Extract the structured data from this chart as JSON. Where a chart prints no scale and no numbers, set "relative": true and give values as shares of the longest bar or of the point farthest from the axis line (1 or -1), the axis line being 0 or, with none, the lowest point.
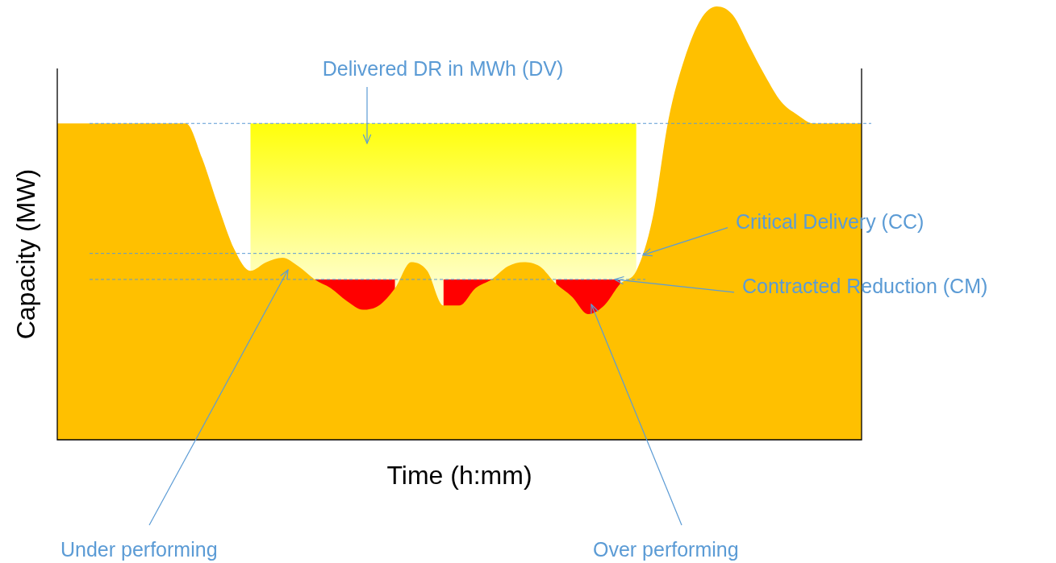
{
  "chart_data": {
    "type": "area",
    "relative": true,
    "xlabel": "Time (h:mm)",
    "ylabel": "Capacity (MW)",
    "categories": [
      null,
      null,
      null,
      null,
      null,
      null,
      null,
      null,
      null,
      null,
      null,
      null,
      null,
      null,
      null,
      null,
      null,
      null,
      null,
      null,
      null,
      null,
      null,
      null,
      null,
      null,
      null,
      null,
      null,
      null,
      null,
      null,
      null,
      null,
      null,
      null,
      null,
      null,
      null,
      null,
      null,
      null,
      null,
      null,
      null,
      null,
      null,
      null,
      null,
      null,
      null
    ],
    "series": [
      {
        "color": "#ffc000",
        "values": [
          0.73,
          0.73,
          0.73,
          0.73,
          0.73,
          0.73,
          0.73,
          0.73,
          0.73,
          0.65,
          0.54,
          0.44,
          0.39,
          0.41,
          0.42,
          0.4,
          0.37,
          0.35,
          0.32,
          0.3,
          0.31,
          0.35,
          0.41,
          0.39,
          0.31,
          0.31,
          0.35,
          0.37,
          0.4,
          0.41,
          0.4,
          0.36,
          0.33,
          0.29,
          0.31,
          0.36,
          0.39,
          0.51,
          0.74,
          0.88,
          0.97,
          1,
          0.98,
          0.91,
          0.84,
          0.78,
          0.75,
          0.73,
          0.73,
          0.73,
          0.73
        ]
      },
      {
        "color": "#ff0000",
        "values": [
          null,
          null,
          null,
          null,
          null,
          null,
          null,
          null,
          null,
          null,
          null,
          null,
          null,
          null,
          null,
          null,
          0.37,
          0.37,
          0.37,
          0.37,
          0.37,
          0.37,
          null,
          null,
          0.37,
          0.37,
          0.37,
          0.37,
          null,
          null,
          null,
          0.37,
          0.37,
          0.37,
          0.37,
          0.37,
          null,
          null,
          null,
          null,
          null,
          null,
          null,
          null,
          null,
          null,
          null,
          null,
          null,
          null,
          null
        ]
      },
      {
        "color": "#ffff00",
        "values": [
          null,
          null,
          null,
          null,
          null,
          null,
          null,
          null,
          null,
          null,
          null,
          null,
          0.73,
          0.73,
          0.73,
          0.73,
          0.73,
          0.73,
          0.73,
          0.73,
          0.73,
          0.73,
          0.73,
          0.73,
          0.73,
          0.73,
          0.73,
          0.73,
          0.73,
          0.73,
          0.73,
          0.73,
          0.73,
          0.73,
          0.73,
          0.73,
          0.73,
          null,
          null,
          null,
          null,
          null,
          null,
          null,
          null,
          null,
          null,
          null,
          null,
          null,
          null
        ]
      }
    ],
    "ref_lines": [
      {
        "axis": "y",
        "value": 0.73,
        "color": "#5b9bd5",
        "line_style": "dashed"
      },
      {
        "axis": "y",
        "value": 0.43,
        "label": "Critical Delivery (CC)",
        "color": "#5b9bd5",
        "line_style": "dashed"
      },
      {
        "axis": "y",
        "value": 0.37,
        "label": "Contracted Reduction (CM)",
        "color": "#5b9bd5",
        "line_style": "dashed"
      }
    ],
    "annotations": [
      "Delivered DR in MWh (DV)",
      "Under performing",
      "Over performing"
    ]
  }
}
